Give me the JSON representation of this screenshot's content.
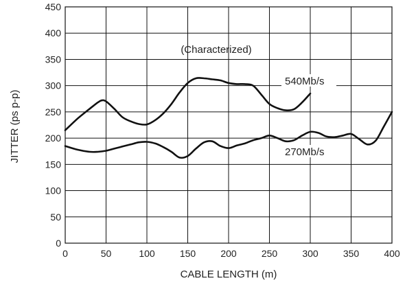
{
  "chart_data": {
    "type": "line",
    "title": "",
    "xlabel": "CABLE LENGTH (m)",
    "ylabel": "JITTER (ps p-p)",
    "xlim": [
      0,
      400
    ],
    "ylim": [
      0,
      450
    ],
    "xticks": [
      0,
      50,
      100,
      150,
      200,
      250,
      300,
      350,
      400
    ],
    "yticks": [
      0,
      50,
      100,
      150,
      200,
      250,
      300,
      350,
      400,
      450
    ],
    "grid": true,
    "annotations": [
      "(Characterized)"
    ],
    "series": [
      {
        "name": "540Mb/s",
        "x": [
          0,
          15,
          30,
          40,
          45,
          50,
          60,
          70,
          80,
          90,
          100,
          110,
          120,
          130,
          140,
          150,
          160,
          170,
          180,
          190,
          200,
          210,
          220,
          230,
          240,
          250,
          260,
          270,
          280,
          290,
          300
        ],
        "y": [
          215,
          237,
          256,
          268,
          272,
          270,
          256,
          240,
          232,
          227,
          226,
          234,
          247,
          265,
          287,
          305,
          314,
          314,
          312,
          310,
          305,
          303,
          303,
          300,
          283,
          265,
          257,
          253,
          255,
          268,
          285
        ]
      },
      {
        "name": "270Mb/s",
        "x": [
          0,
          15,
          30,
          40,
          50,
          60,
          70,
          80,
          90,
          100,
          110,
          120,
          130,
          140,
          150,
          160,
          170,
          180,
          190,
          200,
          210,
          220,
          230,
          240,
          250,
          260,
          270,
          280,
          290,
          300,
          310,
          320,
          330,
          340,
          350,
          360,
          370,
          380,
          390,
          400
        ],
        "y": [
          185,
          178,
          174,
          174,
          176,
          180,
          184,
          188,
          192,
          193,
          190,
          183,
          174,
          163,
          166,
          180,
          192,
          194,
          185,
          181,
          186,
          190,
          196,
          200,
          205,
          200,
          194,
          196,
          205,
          212,
          210,
          203,
          202,
          205,
          208,
          198,
          188,
          195,
          222,
          250
        ]
      }
    ]
  }
}
